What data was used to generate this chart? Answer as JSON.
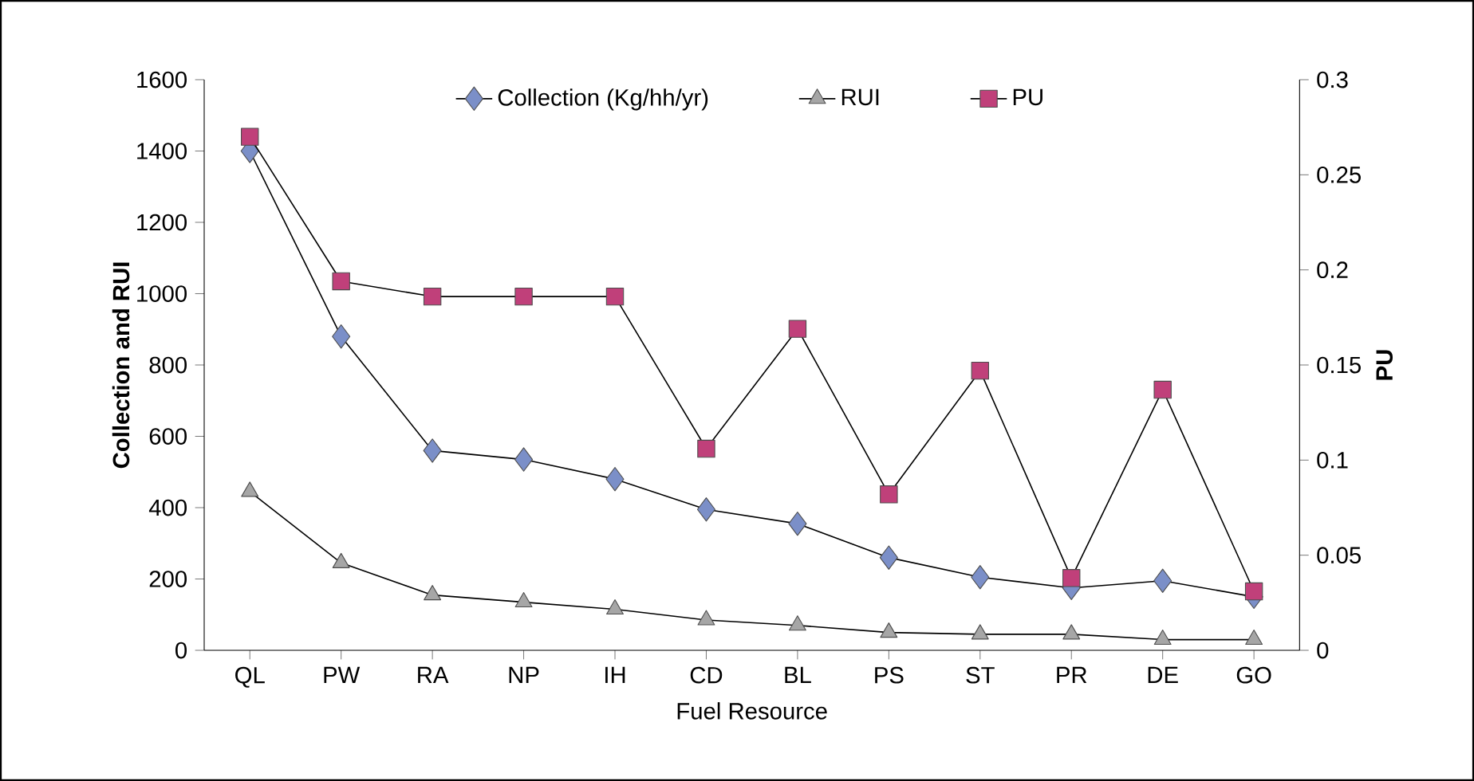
{
  "chart_data": {
    "type": "line",
    "xlabel": "Fuel Resource",
    "ylabel": "Collection and RUI",
    "y2label": "PU",
    "categories": [
      "QL",
      "PW",
      "RA",
      "NP",
      "IH",
      "CD",
      "BL",
      "PS",
      "ST",
      "PR",
      "DE",
      "GO"
    ],
    "series": [
      {
        "name": "Collection (Kg/hh/yr)",
        "color": "#7b8fc8",
        "marker": "diamond",
        "values": [
          1400,
          880,
          560,
          535,
          480,
          395,
          355,
          260,
          205,
          175,
          195,
          150
        ]
      },
      {
        "name": "RUI",
        "color": "#a6a6a6",
        "marker": "triangle",
        "values": [
          445,
          245,
          155,
          135,
          115,
          85,
          70,
          50,
          45,
          45,
          30,
          30
        ]
      },
      {
        "name": "PU",
        "color": "#c0407a",
        "marker": "square",
        "axis": "y2",
        "values": [
          0.27,
          0.194,
          0.186,
          0.186,
          0.186,
          0.106,
          0.169,
          0.082,
          0.147,
          0.038,
          0.137,
          0.031
        ]
      }
    ],
    "ylim": [
      0,
      1600
    ],
    "yticks": [
      0,
      200,
      400,
      600,
      800,
      1000,
      1200,
      1400,
      1600
    ],
    "y2lim": [
      0,
      0.3
    ],
    "y2ticks": [
      0,
      0.05,
      0.1,
      0.15,
      0.2,
      0.25,
      0.3
    ],
    "legend": "top",
    "grid": false
  }
}
